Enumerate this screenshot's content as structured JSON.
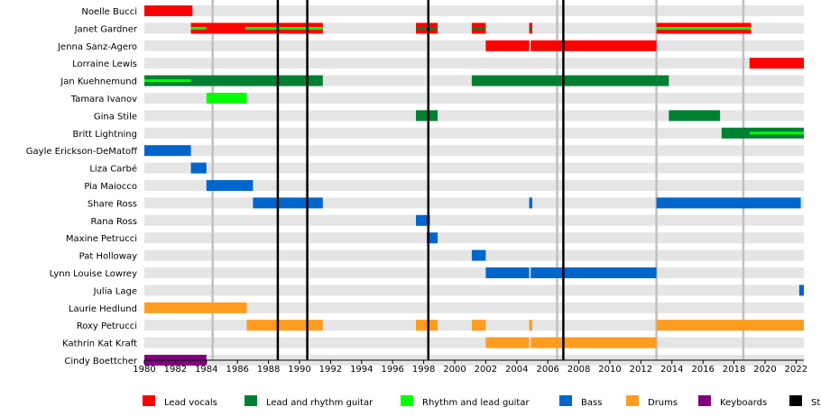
{
  "chart_data": {
    "type": "timeline",
    "title": "",
    "xlabel": "",
    "ylabel": "",
    "xlim": [
      1980,
      2022.5
    ],
    "x_ticks": [
      {
        "value": 1980,
        "label": "1980"
      },
      {
        "value": 1982,
        "label": "1982"
      },
      {
        "value": 1984,
        "label": "1984"
      },
      {
        "value": 1986,
        "label": "1986"
      },
      {
        "value": 1988,
        "label": "1988"
      },
      {
        "value": 1990,
        "label": "1990"
      },
      {
        "value": 1992,
        "label": "1992"
      },
      {
        "value": 1994,
        "label": "1994"
      },
      {
        "value": 1996,
        "label": "1996"
      },
      {
        "value": 1998,
        "label": "1998"
      },
      {
        "value": 2000,
        "label": "2000"
      },
      {
        "value": 2002,
        "label": "2002"
      },
      {
        "value": 2004,
        "label": "2004"
      },
      {
        "value": 2006,
        "label": "2006"
      },
      {
        "value": 2008,
        "label": "2008"
      },
      {
        "value": 2010,
        "label": "2010"
      },
      {
        "value": 2012,
        "label": "2012"
      },
      {
        "value": 2014,
        "label": "2014"
      },
      {
        "value": 2016,
        "label": "2016"
      },
      {
        "value": 2018,
        "label": "2018"
      },
      {
        "value": 2020,
        "label": "2020"
      },
      {
        "value": 2022,
        "label": "2022"
      }
    ],
    "colors": {
      "Lead vocals": "#ff0000",
      "Lead and rhythm guitar": "#008033",
      "Rhythm and lead guitar": "#00ff00",
      "Bass": "#0066cc",
      "Drums": "#ff9c1f",
      "Keyboards": "#800080",
      "Studio albums": "#000000",
      "row_band": "#e5e5e5",
      "year_line": "#c0c0c0"
    },
    "legend": {
      "placement": "bottom",
      "items": [
        {
          "label": "Lead vocals",
          "color": "#ff0000"
        },
        {
          "label": "Lead and rhythm guitar",
          "color": "#008033"
        },
        {
          "label": "Rhythm and lead guitar",
          "color": "#00ff00"
        },
        {
          "label": "Bass",
          "color": "#0066cc"
        },
        {
          "label": "Drums",
          "color": "#ff9c1f"
        },
        {
          "label": "Keyboards",
          "color": "#800080"
        },
        {
          "label": "Studio albums",
          "color": "#000000"
        }
      ]
    },
    "studio_albums": [
      1988.6,
      1990.5,
      1998.3,
      2007.0
    ],
    "other_releases": [
      1984.4,
      2006.6,
      2013.0,
      2018.6
    ],
    "members": [
      {
        "name": "Noelle Bucci",
        "bars": [
          {
            "role": "Lead vocals",
            "start": 1980,
            "end": 1983.1
          }
        ]
      },
      {
        "name": "Janet Gardner",
        "bars": [
          {
            "role": "Lead vocals",
            "start": 1983.0,
            "end": 1991.5,
            "accent": [
              {
                "role": "Rhythm and lead guitar",
                "start": 1983.0,
                "end": 1984.0
              },
              {
                "role": "Rhythm and lead guitar",
                "start": 1986.5,
                "end": 1991.5
              }
            ]
          },
          {
            "role": "Lead vocals",
            "start": 1997.5,
            "end": 1998.9,
            "accent": [
              {
                "role": "Lead and rhythm guitar",
                "start": 1997.5,
                "end": 1998.9
              }
            ]
          },
          {
            "role": "Lead vocals",
            "start": 2001.1,
            "end": 2002.0,
            "accent": [
              {
                "role": "Lead and rhythm guitar",
                "start": 2001.1,
                "end": 2002.0
              }
            ]
          },
          {
            "role": "Lead vocals",
            "start": 2004.8,
            "end": 2005.0,
            "accent": [
              {
                "role": "Lead and rhythm guitar",
                "start": 2004.8,
                "end": 2005.0
              }
            ]
          },
          {
            "role": "Lead vocals",
            "start": 2013.0,
            "end": 2019.1,
            "accent": [
              {
                "role": "Rhythm and lead guitar",
                "start": 2013.0,
                "end": 2019.1
              }
            ]
          }
        ]
      },
      {
        "name": "Jenna Sanz-Agero",
        "bars": [
          {
            "role": "Lead vocals",
            "start": 2002.0,
            "end": 2004.8
          },
          {
            "role": "Lead vocals",
            "start": 2004.9,
            "end": 2013.0
          }
        ]
      },
      {
        "name": "Lorraine Lewis",
        "bars": [
          {
            "role": "Lead vocals",
            "start": 2019.0,
            "end": 2022.5
          }
        ]
      },
      {
        "name": "Jan Kuehnemund",
        "bars": [
          {
            "role": "Lead and rhythm guitar",
            "start": 1980,
            "end": 1991.5,
            "accent": [
              {
                "role": "Rhythm and lead guitar",
                "start": 1980,
                "end": 1983.0
              }
            ]
          },
          {
            "role": "Lead and rhythm guitar",
            "start": 2001.1,
            "end": 2013.8
          }
        ]
      },
      {
        "name": "Tamara Ivanov",
        "bars": [
          {
            "role": "Rhythm and lead guitar",
            "start": 1984.0,
            "end": 1986.6
          }
        ]
      },
      {
        "name": "Gina Stile",
        "bars": [
          {
            "role": "Lead and rhythm guitar",
            "start": 1997.5,
            "end": 1998.9
          },
          {
            "role": "Lead and rhythm guitar",
            "start": 2013.8,
            "end": 2017.1
          }
        ]
      },
      {
        "name": "Britt Lightning",
        "bars": [
          {
            "role": "Lead and rhythm guitar",
            "start": 2017.2,
            "end": 2022.5,
            "accent": [
              {
                "role": "Rhythm and lead guitar",
                "start": 2019.0,
                "end": 2022.5
              }
            ]
          }
        ]
      },
      {
        "name": "Gayle Erickson-DeMatoff",
        "bars": [
          {
            "role": "Bass",
            "start": 1980,
            "end": 1983.0
          }
        ]
      },
      {
        "name": "Liza Carbé",
        "bars": [
          {
            "role": "Bass",
            "start": 1983.0,
            "end": 1984.0
          }
        ]
      },
      {
        "name": "Pia Maiocco",
        "bars": [
          {
            "role": "Bass",
            "start": 1984.0,
            "end": 1987.0
          }
        ]
      },
      {
        "name": "Share Ross",
        "bars": [
          {
            "role": "Bass",
            "start": 1987.0,
            "end": 1991.5
          },
          {
            "role": "Bass",
            "start": 2004.8,
            "end": 2005.0
          },
          {
            "role": "Bass",
            "start": 2013.0,
            "end": 2022.3
          }
        ]
      },
      {
        "name": "Rana Ross",
        "bars": [
          {
            "role": "Bass",
            "start": 1997.5,
            "end": 1998.4
          }
        ]
      },
      {
        "name": "Maxine Petrucci",
        "bars": [
          {
            "role": "Bass",
            "start": 1998.2,
            "end": 1998.9
          }
        ]
      },
      {
        "name": "Pat Holloway",
        "bars": [
          {
            "role": "Bass",
            "start": 2001.1,
            "end": 2002.0
          }
        ]
      },
      {
        "name": "Lynn Louise Lowrey",
        "bars": [
          {
            "role": "Bass",
            "start": 2002.0,
            "end": 2004.8
          },
          {
            "role": "Bass",
            "start": 2004.9,
            "end": 2013.0
          }
        ]
      },
      {
        "name": "Julia Lage",
        "bars": [
          {
            "role": "Bass",
            "start": 2022.2,
            "end": 2022.5
          }
        ]
      },
      {
        "name": "Laurie Hedlund",
        "bars": [
          {
            "role": "Drums",
            "start": 1980,
            "end": 1986.6
          }
        ]
      },
      {
        "name": "Roxy Petrucci",
        "bars": [
          {
            "role": "Drums",
            "start": 1986.6,
            "end": 1991.5
          },
          {
            "role": "Drums",
            "start": 1997.5,
            "end": 1998.9
          },
          {
            "role": "Drums",
            "start": 2001.1,
            "end": 2002.0
          },
          {
            "role": "Drums",
            "start": 2004.8,
            "end": 2005.0
          },
          {
            "role": "Drums",
            "start": 2013.0,
            "end": 2022.5
          }
        ]
      },
      {
        "name": "Kathrin Kat Kraft",
        "bars": [
          {
            "role": "Drums",
            "start": 2002.0,
            "end": 2004.8
          },
          {
            "role": "Drums",
            "start": 2004.9,
            "end": 2013.0
          }
        ]
      },
      {
        "name": "Cindy Boettcher",
        "bars": [
          {
            "role": "Keyboards",
            "start": 1980,
            "end": 1984.0
          }
        ]
      }
    ]
  }
}
